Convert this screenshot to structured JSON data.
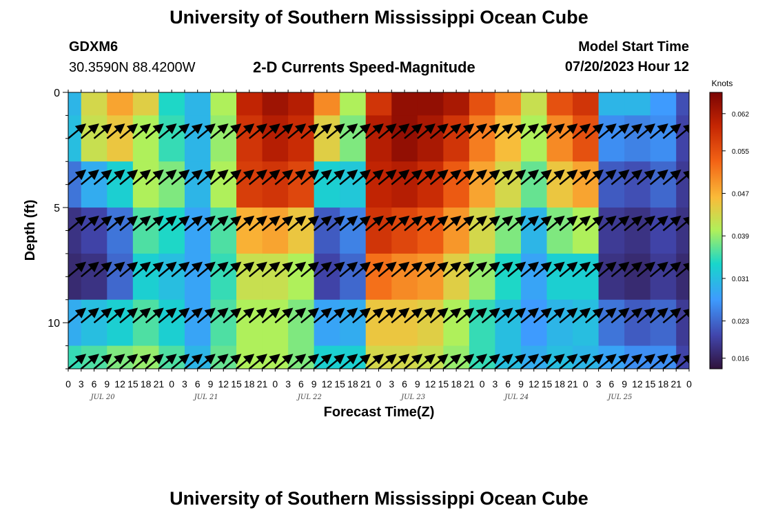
{
  "header": {
    "title": "University of Southern Mississippi Ocean Cube",
    "station": "GDXM6",
    "location": "30.3590N  88.4200W",
    "subtitle": "2-D Currents Speed-Magnitude",
    "model_start_label": "Model Start Time",
    "model_start_value": "07/20/2023 Hour 12"
  },
  "footer": {
    "title": "University of Southern Mississippi Ocean Cube"
  },
  "chart_data": {
    "type": "heatmap",
    "title": "2-D Currents Speed-Magnitude",
    "xlabel": "Forecast Time(Z)",
    "ylabel": "Depth (ft)",
    "x_tick_labels": [
      "0",
      "3",
      "6",
      "9",
      "12",
      "15",
      "18",
      "21",
      "0",
      "3",
      "6",
      "9",
      "12",
      "15",
      "18",
      "21",
      "0",
      "3",
      "6",
      "9",
      "12",
      "15",
      "18",
      "21",
      "0",
      "3",
      "6",
      "9",
      "12",
      "15",
      "18",
      "21",
      "0",
      "3",
      "6",
      "9",
      "12",
      "15",
      "18",
      "21",
      "0",
      "3",
      "6",
      "9",
      "12",
      "15",
      "18",
      "21",
      "0"
    ],
    "date_labels": [
      "JUL 20",
      "JUL 21",
      "JUL 22",
      "JUL 23",
      "JUL 24",
      "JUL 25"
    ],
    "y_ticks": [
      0,
      5,
      10
    ],
    "ylim": [
      0,
      12
    ],
    "y_inverted": true,
    "colorbar": {
      "label": "Knots",
      "ticks": [
        0.016,
        0.023,
        0.031,
        0.039,
        0.047,
        0.055,
        0.062
      ],
      "range": [
        0.014,
        0.066
      ]
    },
    "depths_ft": [
      0,
      2,
      4,
      6,
      8,
      10,
      12
    ],
    "time_hours": [
      0,
      6,
      12,
      18,
      24,
      30,
      36,
      42,
      48,
      54,
      60,
      66,
      72,
      78,
      84,
      90,
      96,
      102,
      108,
      114,
      120,
      126,
      132,
      138,
      144
    ],
    "speed_knots": [
      [
        0.03,
        0.043,
        0.048,
        0.044,
        0.034,
        0.03,
        0.04,
        0.06,
        0.063,
        0.061,
        0.05,
        0.04,
        0.058,
        0.064,
        0.064,
        0.062,
        0.055,
        0.05,
        0.042,
        0.055,
        0.058,
        0.03,
        0.03,
        0.027,
        0.021
      ],
      [
        0.031,
        0.042,
        0.045,
        0.04,
        0.035,
        0.03,
        0.039,
        0.058,
        0.061,
        0.059,
        0.044,
        0.038,
        0.061,
        0.064,
        0.062,
        0.058,
        0.051,
        0.046,
        0.04,
        0.05,
        0.055,
        0.026,
        0.025,
        0.026,
        0.02
      ],
      [
        0.024,
        0.029,
        0.033,
        0.04,
        0.038,
        0.03,
        0.04,
        0.057,
        0.058,
        0.056,
        0.033,
        0.032,
        0.06,
        0.061,
        0.059,
        0.054,
        0.048,
        0.043,
        0.037,
        0.045,
        0.048,
        0.022,
        0.021,
        0.023,
        0.019
      ],
      [
        0.018,
        0.02,
        0.024,
        0.036,
        0.034,
        0.028,
        0.036,
        0.047,
        0.048,
        0.045,
        0.022,
        0.025,
        0.058,
        0.056,
        0.054,
        0.049,
        0.043,
        0.038,
        0.03,
        0.038,
        0.04,
        0.019,
        0.018,
        0.02,
        0.018
      ],
      [
        0.017,
        0.018,
        0.023,
        0.033,
        0.031,
        0.028,
        0.035,
        0.042,
        0.042,
        0.04,
        0.02,
        0.023,
        0.052,
        0.05,
        0.049,
        0.044,
        0.039,
        0.034,
        0.028,
        0.033,
        0.033,
        0.018,
        0.017,
        0.019,
        0.017
      ],
      [
        0.029,
        0.031,
        0.033,
        0.036,
        0.033,
        0.028,
        0.036,
        0.04,
        0.04,
        0.038,
        0.028,
        0.029,
        0.045,
        0.045,
        0.044,
        0.04,
        0.035,
        0.031,
        0.027,
        0.03,
        0.031,
        0.024,
        0.022,
        0.023,
        0.019
      ],
      [
        0.035,
        0.036,
        0.038,
        0.039,
        0.036,
        0.03,
        0.037,
        0.04,
        0.04,
        0.038,
        0.033,
        0.033,
        0.043,
        0.043,
        0.042,
        0.039,
        0.035,
        0.031,
        0.029,
        0.031,
        0.03,
        0.028,
        0.026,
        0.026,
        0.02
      ]
    ],
    "vectors": {
      "depths_ft": [
        2,
        4,
        6,
        8,
        10,
        12
      ],
      "direction_deg": 45,
      "spacing_hours": 3
    }
  }
}
